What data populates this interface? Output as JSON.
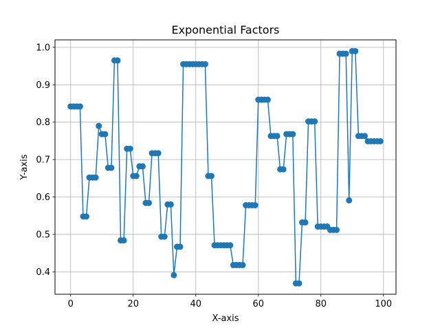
{
  "chart_data": {
    "type": "line",
    "title": "Exponential Factors",
    "xlabel": "X-axis",
    "ylabel": "Y-axis",
    "xlim": [
      -5,
      104
    ],
    "ylim": [
      0.34,
      1.02
    ],
    "xticks": [
      0,
      20,
      40,
      60,
      80,
      100
    ],
    "yticks": [
      0.4,
      0.5,
      0.6,
      0.7,
      0.8,
      0.9,
      1.0
    ],
    "ytick_labels": [
      "0.4",
      "0.5",
      "0.6",
      "0.7",
      "0.8",
      "0.9",
      "1.0"
    ],
    "grid": true,
    "marker": "circle",
    "color": "#1f77b4",
    "x": [
      0,
      1,
      2,
      3,
      4,
      5,
      6,
      7,
      8,
      9,
      10,
      11,
      12,
      13,
      14,
      15,
      16,
      17,
      18,
      19,
      20,
      21,
      22,
      23,
      24,
      25,
      26,
      27,
      28,
      29,
      30,
      31,
      32,
      33,
      34,
      35,
      36,
      37,
      38,
      39,
      40,
      41,
      42,
      43,
      44,
      45,
      46,
      47,
      48,
      49,
      50,
      51,
      52,
      53,
      54,
      55,
      56,
      57,
      58,
      59,
      60,
      61,
      62,
      63,
      64,
      65,
      66,
      67,
      68,
      69,
      70,
      71,
      72,
      73,
      74,
      75,
      76,
      77,
      78,
      79,
      80,
      81,
      82,
      83,
      84,
      85,
      86,
      87,
      88,
      89,
      90,
      91,
      92,
      93,
      94,
      95,
      96,
      97,
      98,
      99
    ],
    "values": [
      0.842,
      0.842,
      0.842,
      0.842,
      0.548,
      0.548,
      0.652,
      0.652,
      0.652,
      0.79,
      0.768,
      0.768,
      0.678,
      0.678,
      0.965,
      0.965,
      0.484,
      0.484,
      0.729,
      0.729,
      0.656,
      0.656,
      0.682,
      0.682,
      0.584,
      0.584,
      0.717,
      0.717,
      0.717,
      0.494,
      0.494,
      0.58,
      0.58,
      0.391,
      0.467,
      0.467,
      0.955,
      0.955,
      0.955,
      0.955,
      0.955,
      0.955,
      0.955,
      0.955,
      0.656,
      0.656,
      0.471,
      0.471,
      0.471,
      0.471,
      0.471,
      0.471,
      0.418,
      0.418,
      0.418,
      0.418,
      0.578,
      0.578,
      0.578,
      0.578,
      0.86,
      0.86,
      0.86,
      0.86,
      0.763,
      0.763,
      0.763,
      0.674,
      0.674,
      0.768,
      0.768,
      0.768,
      0.369,
      0.369,
      0.532,
      0.532,
      0.802,
      0.802,
      0.802,
      0.521,
      0.521,
      0.521,
      0.521,
      0.512,
      0.512,
      0.512,
      0.983,
      0.983,
      0.983,
      0.591,
      0.99,
      0.99,
      0.763,
      0.763,
      0.763,
      0.749,
      0.749,
      0.749,
      0.749,
      0.749
    ]
  }
}
